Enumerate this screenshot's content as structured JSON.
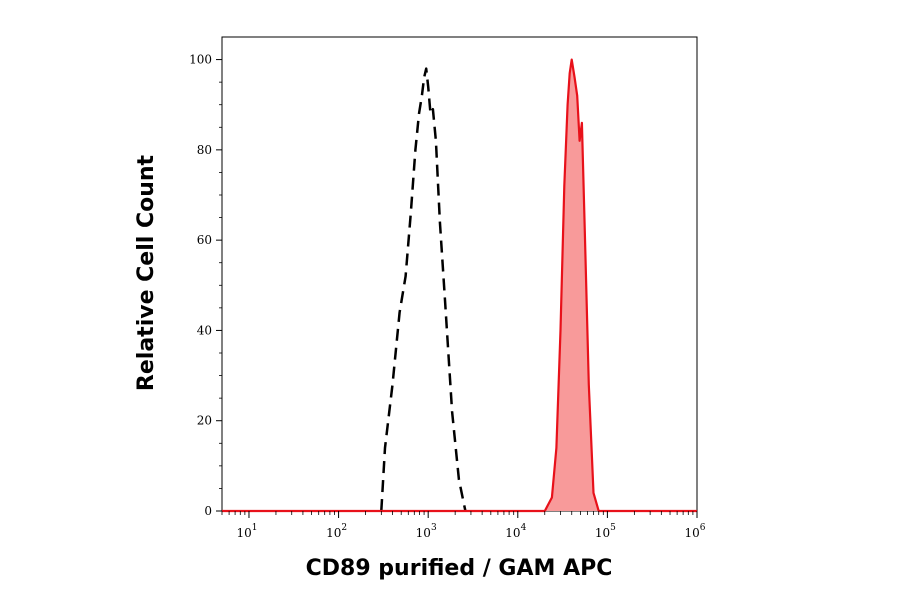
{
  "chart_data": {
    "type": "area",
    "title": "",
    "xlabel": "CD89 purified / GAM APC",
    "ylabel": "Relative Cell Count",
    "x_scale": "log",
    "xlim": [
      5,
      1000000
    ],
    "ylim": [
      0,
      105
    ],
    "x_ticks": [
      {
        "base": "10",
        "exp": "1",
        "value": 10
      },
      {
        "base": "10",
        "exp": "2",
        "value": 100
      },
      {
        "base": "10",
        "exp": "3",
        "value": 1000
      },
      {
        "base": "10",
        "exp": "4",
        "value": 10000
      },
      {
        "base": "10",
        "exp": "5",
        "value": 100000
      },
      {
        "base": "10",
        "exp": "6",
        "value": 1000000
      }
    ],
    "y_ticks": [
      0,
      20,
      40,
      60,
      80,
      100
    ],
    "grid": false,
    "legend": "none",
    "series": [
      {
        "style": "dashed",
        "color": "#000000",
        "fill": "none",
        "x": [
          300,
          330,
          400,
          480,
          560,
          640,
          720,
          790,
          850,
          900,
          950,
          1000,
          1060,
          1130,
          1220,
          1350,
          1550,
          1850,
          2200,
          2600
        ],
        "y": [
          0,
          14,
          28,
          44,
          52,
          66,
          80,
          88,
          92,
          96,
          98,
          94,
          88,
          89,
          82,
          64,
          46,
          22,
          7,
          0
        ]
      },
      {
        "style": "solid",
        "color": "#e8111a",
        "fill": "#f89a9a",
        "x": [
          5,
          20000,
          24000,
          27000,
          30000,
          33000,
          36000,
          38000,
          40000,
          43000,
          46000,
          49000,
          52000,
          56000,
          62000,
          70000,
          80000,
          1000000
        ],
        "y": [
          0,
          0,
          3,
          14,
          40,
          72,
          90,
          97,
          100,
          96,
          92,
          82,
          86,
          62,
          28,
          4,
          0,
          0
        ]
      }
    ]
  }
}
